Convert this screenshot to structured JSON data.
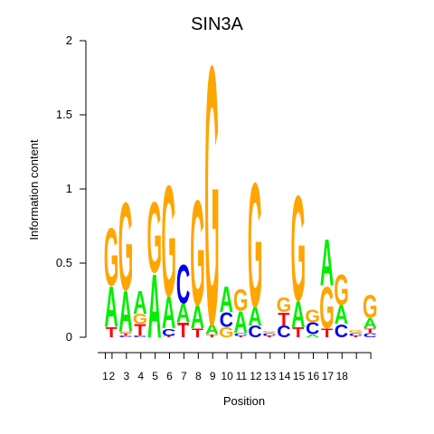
{
  "chart_data": {
    "type": "sequence-logo",
    "title": "SIN3A",
    "xlabel": "Position",
    "ylabel": "Information content",
    "ylim": [
      0,
      2
    ],
    "yticks": [
      "0",
      "0.5",
      "1",
      "1.5",
      "2"
    ],
    "xtick_labels": [
      "1",
      "2",
      "3",
      "4",
      "5",
      "6",
      "7",
      "8",
      "9",
      "10",
      "11",
      "12",
      "13",
      "14",
      "15",
      "16",
      "17",
      "18",
      "",
      ""
    ],
    "colors": {
      "A": "#00ee00",
      "C": "#0000ee",
      "G": "#ffa500",
      "T": "#ff0000"
    },
    "positions": [
      {
        "pos": 1,
        "letters": [
          [
            "T",
            0.07
          ],
          [
            "A",
            0.28
          ],
          [
            "G",
            0.4
          ]
        ]
      },
      {
        "pos": 2,
        "letters": [
          [
            "C",
            0.01
          ],
          [
            "T",
            0.02
          ],
          [
            "G",
            0.01
          ],
          [
            "A",
            0.28
          ],
          [
            "G",
            0.61
          ]
        ]
      },
      {
        "pos": 3,
        "letters": [
          [
            "C",
            0.01
          ],
          [
            "T",
            0.08
          ],
          [
            "G",
            0.07
          ],
          [
            "A",
            0.16
          ]
        ]
      },
      {
        "pos": 4,
        "letters": [
          [
            "A",
            0.44
          ],
          [
            "G",
            0.49
          ]
        ]
      },
      {
        "pos": 5,
        "letters": [
          [
            "T",
            0.01
          ],
          [
            "C",
            0.05
          ],
          [
            "A",
            0.22
          ],
          [
            "G",
            0.77
          ]
        ]
      },
      {
        "pos": 6,
        "letters": [
          [
            "T",
            0.1
          ],
          [
            "A",
            0.13
          ],
          [
            "C",
            0.27
          ]
        ]
      },
      {
        "pos": 7,
        "letters": [
          [
            "T",
            0.06
          ],
          [
            "A",
            0.16
          ],
          [
            "G",
            0.73
          ]
        ]
      },
      {
        "pos": 8,
        "letters": [
          [
            "T",
            0.02
          ],
          [
            "A",
            0.07
          ],
          [
            "G",
            1.8
          ]
        ]
      },
      {
        "pos": 9,
        "letters": [
          [
            "G",
            0.07
          ],
          [
            "C",
            0.1
          ],
          [
            "A",
            0.18
          ]
        ]
      },
      {
        "pos": 10,
        "letters": [
          [
            "T",
            0.01
          ],
          [
            "C",
            0.02
          ],
          [
            "A",
            0.15
          ],
          [
            "G",
            0.15
          ]
        ]
      },
      {
        "pos": 11,
        "letters": [
          [
            "C",
            0.08
          ],
          [
            "A",
            0.13
          ],
          [
            "G",
            0.86
          ]
        ]
      },
      {
        "pos": 12,
        "letters": [
          [
            "T",
            0.01
          ],
          [
            "C",
            0.02
          ],
          [
            "G",
            0.01
          ]
        ]
      },
      {
        "pos": 13,
        "letters": [
          [
            "C",
            0.08
          ],
          [
            "T",
            0.09
          ],
          [
            "G",
            0.1
          ]
        ]
      },
      {
        "pos": 14,
        "letters": [
          [
            "T",
            0.07
          ],
          [
            "A",
            0.18
          ],
          [
            "G",
            0.73
          ]
        ]
      },
      {
        "pos": 15,
        "letters": [
          [
            "A",
            0.02
          ],
          [
            "C",
            0.08
          ],
          [
            "G",
            0.09
          ]
        ]
      },
      {
        "pos": 16,
        "letters": [
          [
            "T",
            0.06
          ],
          [
            "G",
            0.29
          ],
          [
            "A",
            0.32
          ]
        ]
      },
      {
        "pos": 17,
        "letters": [
          [
            "C",
            0.09
          ],
          [
            "A",
            0.13
          ],
          [
            "G",
            0.21
          ]
        ]
      },
      {
        "pos": 18,
        "letters": [
          [
            "T",
            0.01
          ],
          [
            "C",
            0.02
          ],
          [
            "G",
            0.02
          ]
        ]
      },
      {
        "pos": 19,
        "letters": [
          [
            "C",
            0.03
          ],
          [
            "T",
            0.03
          ],
          [
            "A",
            0.07
          ],
          [
            "G",
            0.16
          ]
        ]
      }
    ]
  }
}
